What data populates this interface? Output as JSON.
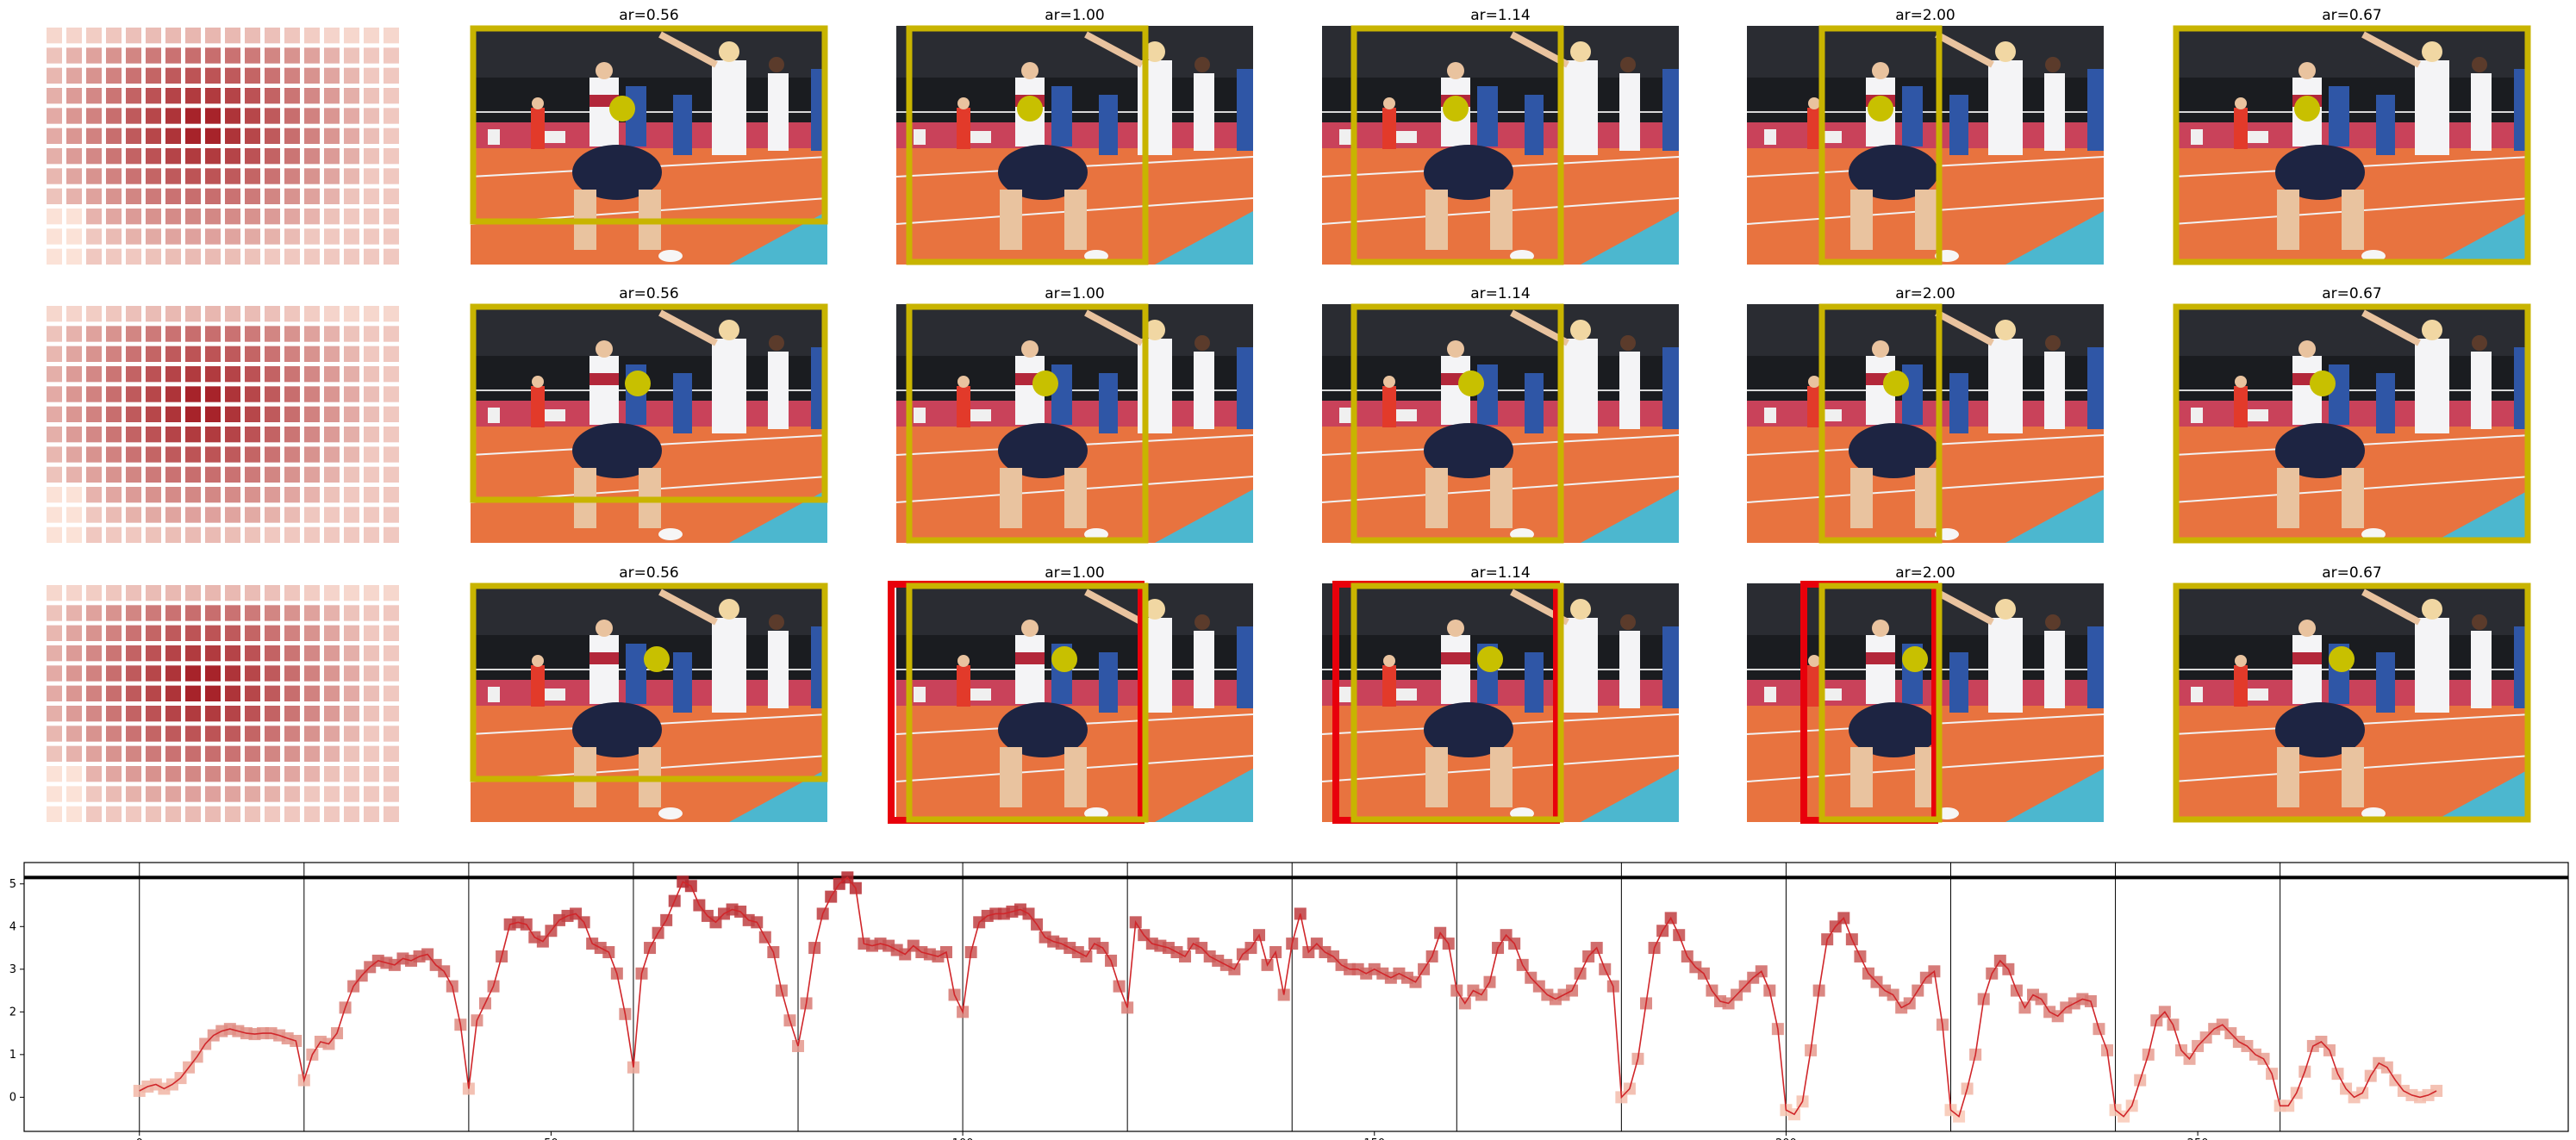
{
  "figure": {
    "panel_titles": [
      "ar=0.56",
      "ar=1.00",
      "ar=1.14",
      "ar=2.00",
      "ar=0.67"
    ],
    "rows": 3,
    "photo_description_icon": "volleyball-match-photo",
    "colors": {
      "crop_box": "#c8b400",
      "alt_box": "#e8000b",
      "focus_dot": "#c8c000",
      "heat_low": "#fde6db",
      "heat_high": "#a41d24",
      "line": "#d0262a",
      "floor": "#e8733f",
      "court_blue": "#4cb7cf"
    }
  },
  "chart_data": {
    "type": "line",
    "xlim": [
      -14,
      295
    ],
    "ylim": [
      -0.8,
      5.5
    ],
    "xticks": [
      0,
      50,
      100,
      150,
      200,
      250
    ],
    "yticks": [
      0,
      1,
      2,
      3,
      4,
      5
    ],
    "vlines": [
      0,
      20,
      40,
      60,
      80,
      100,
      120,
      140,
      160,
      180,
      200,
      220,
      240,
      260
    ],
    "hline": 5.15,
    "series": [
      {
        "values": [
          0.15,
          0.25,
          0.3,
          0.2,
          0.3,
          0.45,
          0.7,
          0.95,
          1.25,
          1.45,
          1.55,
          1.6,
          1.55,
          1.5,
          1.48,
          1.5,
          1.5,
          1.45,
          1.38,
          1.32,
          0.4,
          1.0,
          1.3,
          1.25,
          1.5,
          2.1,
          2.6,
          2.85,
          3.05,
          3.2,
          3.15,
          3.1,
          3.25,
          3.2,
          3.3,
          3.35,
          3.1,
          2.95,
          2.6,
          1.7,
          0.2,
          1.8,
          2.2,
          2.6,
          3.3,
          4.05,
          4.1,
          4.05,
          3.75,
          3.65,
          3.9,
          4.15,
          4.25,
          4.3,
          4.1,
          3.6,
          3.5,
          3.4,
          2.9,
          1.95,
          0.7,
          2.9,
          3.5,
          3.85,
          4.15,
          4.6,
          5.05,
          4.95,
          4.5,
          4.25,
          4.1,
          4.3,
          4.4,
          4.35,
          4.15,
          4.1,
          3.75,
          3.4,
          2.5,
          1.8,
          1.2,
          2.2,
          3.5,
          4.3,
          4.7,
          5.0,
          5.15,
          4.9,
          3.6,
          3.55,
          3.6,
          3.55,
          3.45,
          3.35,
          3.55,
          3.4,
          3.35,
          3.3,
          3.4,
          2.4,
          2.0,
          3.4,
          4.1,
          4.25,
          4.3,
          4.3,
          4.35,
          4.4,
          4.3,
          4.05,
          3.75,
          3.65,
          3.6,
          3.5,
          3.4,
          3.3,
          3.6,
          3.5,
          3.2,
          2.6,
          2.1,
          4.1,
          3.8,
          3.6,
          3.55,
          3.5,
          3.4,
          3.3,
          3.6,
          3.5,
          3.3,
          3.2,
          3.1,
          3.0,
          3.35,
          3.5,
          3.8,
          3.1,
          3.4,
          2.4,
          3.6,
          4.3,
          3.4,
          3.6,
          3.4,
          3.3,
          3.1,
          3.0,
          3.0,
          2.9,
          3.0,
          2.9,
          2.8,
          2.9,
          2.8,
          2.7,
          3.0,
          3.3,
          3.85,
          3.6,
          2.5,
          2.2,
          2.5,
          2.4,
          2.7,
          3.5,
          3.8,
          3.6,
          3.1,
          2.8,
          2.6,
          2.4,
          2.3,
          2.4,
          2.5,
          2.9,
          3.3,
          3.5,
          3.0,
          2.6,
          0.0,
          0.2,
          0.9,
          2.2,
          3.5,
          3.9,
          4.2,
          3.8,
          3.3,
          3.05,
          2.9,
          2.5,
          2.25,
          2.2,
          2.4,
          2.6,
          2.8,
          2.95,
          2.5,
          1.6,
          -0.3,
          -0.4,
          -0.1,
          1.1,
          2.5,
          3.7,
          4.0,
          4.2,
          3.7,
          3.3,
          2.9,
          2.7,
          2.5,
          2.4,
          2.1,
          2.2,
          2.5,
          2.8,
          2.95,
          1.7,
          -0.3,
          -0.45,
          0.2,
          1.0,
          2.3,
          2.9,
          3.2,
          3.0,
          2.5,
          2.1,
          2.4,
          2.3,
          2.0,
          1.9,
          2.1,
          2.2,
          2.3,
          2.25,
          1.6,
          1.1,
          -0.3,
          -0.45,
          -0.2,
          0.4,
          1.0,
          1.8,
          2.0,
          1.7,
          1.1,
          0.9,
          1.2,
          1.4,
          1.6,
          1.7,
          1.5,
          1.3,
          1.2,
          1.0,
          0.9,
          0.55,
          -0.2,
          -0.2,
          0.1,
          0.6,
          1.2,
          1.3,
          1.1,
          0.55,
          0.2,
          0.0,
          0.1,
          0.5,
          0.8,
          0.7,
          0.4,
          0.15,
          0.05,
          0.0,
          0.05,
          0.15
        ]
      }
    ]
  }
}
